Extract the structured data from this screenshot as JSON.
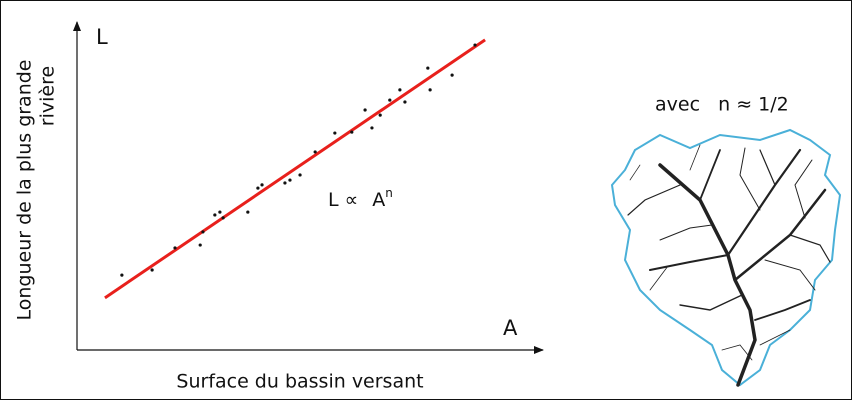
{
  "chart_data": {
    "type": "scatter",
    "x_label": "Surface du bassin versant",
    "y_label": [
      "Longueur de la plus grande",
      "rivière"
    ],
    "x_axis_letter": "A",
    "y_axis_letter": "L",
    "formula": {
      "lhs": "L ∝",
      "base": "A",
      "exponent": "n"
    },
    "note": "avec   n ≈ 1/2",
    "xlim": [
      0,
      100
    ],
    "ylim": [
      0,
      100
    ],
    "points": {
      "color": "#111111",
      "x": [
        9.8,
        16.4,
        21.4,
        26.9,
        27.5,
        30.1,
        31.2,
        31.9,
        37.3,
        39.5,
        40.4,
        45.4,
        46.5,
        48.7,
        52.0,
        56.3,
        60.0,
        62.9,
        64.4,
        66.2,
        68.3,
        70.5,
        71.6,
        76.6,
        77.1,
        81.9,
        86.9
      ],
      "y": [
        23.4,
        25.0,
        31.9,
        32.8,
        36.9,
        42.2,
        43.1,
        41.3,
        43.1,
        50.6,
        51.6,
        52.2,
        53.1,
        54.7,
        61.9,
        67.8,
        68.1,
        75.0,
        69.4,
        73.4,
        78.1,
        81.3,
        77.5,
        88.1,
        81.3,
        85.9,
        95.3
      ]
    },
    "fit_line": {
      "color": "#e8201c",
      "x": [
        6.1,
        89.1
      ],
      "y": [
        16.3,
        96.9
      ]
    }
  }
}
